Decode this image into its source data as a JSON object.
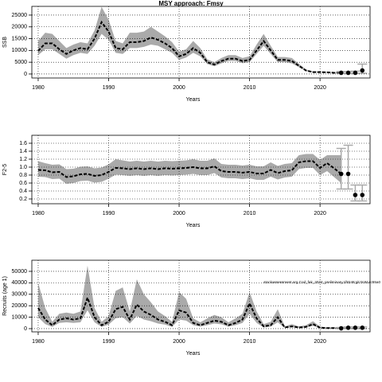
{
  "chart_data": [
    {
      "type": "line",
      "title": "MSY approach: Fmsy",
      "xlabel": "Years",
      "ylabel": "SSB",
      "x": [
        1980,
        1981,
        1982,
        1983,
        1984,
        1985,
        1986,
        1987,
        1988,
        1989,
        1990,
        1991,
        1992,
        1993,
        1994,
        1995,
        1996,
        1997,
        1998,
        1999,
        2000,
        2001,
        2002,
        2003,
        2004,
        2005,
        2006,
        2007,
        2008,
        2009,
        2010,
        2011,
        2012,
        2013,
        2014,
        2015,
        2016,
        2017,
        2018,
        2019,
        2020,
        2021,
        2022,
        2023
      ],
      "values": [
        9800,
        13000,
        13000,
        10500,
        8500,
        10000,
        11000,
        10500,
        15000,
        22000,
        18000,
        11000,
        10500,
        13500,
        13500,
        14000,
        15500,
        14500,
        13000,
        11000,
        7500,
        8500,
        11000,
        9000,
        5000,
        4000,
        5500,
        6500,
        6500,
        5500,
        6000,
        10000,
        14000,
        10000,
        6000,
        6000,
        5500,
        3500,
        1500,
        800,
        800,
        700,
        500,
        500
      ],
      "lower": [
        8000,
        10500,
        10500,
        8500,
        6500,
        8000,
        9000,
        8500,
        12000,
        17000,
        14500,
        9000,
        8500,
        11000,
        11000,
        11500,
        12500,
        12000,
        10500,
        9000,
        6000,
        7000,
        9000,
        7500,
        4200,
        3300,
        4500,
        5500,
        5500,
        4600,
        5000,
        8500,
        12000,
        8500,
        5000,
        5000,
        4500,
        2900,
        1200,
        600,
        600,
        500,
        350,
        300
      ],
      "upper": [
        14000,
        17500,
        17000,
        14000,
        11000,
        12500,
        13500,
        13000,
        18500,
        28500,
        23000,
        14000,
        13000,
        17500,
        17500,
        18000,
        20000,
        18000,
        16000,
        13500,
        9500,
        10500,
        14000,
        11000,
        6200,
        5000,
        6800,
        8000,
        8000,
        6800,
        7500,
        12500,
        17000,
        12000,
        7200,
        7200,
        6800,
        4300,
        1900,
        1100,
        1100,
        1000,
        800,
        900
      ],
      "proj_x": [
        2023,
        2024,
        2025,
        2026
      ],
      "proj_values": [
        500,
        500,
        500,
        1500
      ],
      "proj_lower": [
        200,
        200,
        200,
        300
      ],
      "proj_upper": [
        1000,
        1000,
        1200,
        4200
      ],
      "xlim": [
        1979.1,
        2027.1
      ],
      "ylim": [
        -1700,
        28700
      ],
      "xticks": [
        1980,
        1990,
        2000,
        2010,
        2020
      ],
      "yticks": [
        0,
        5000,
        10000,
        15000,
        20000,
        25000
      ],
      "grid": true
    },
    {
      "type": "line",
      "xlabel": "Years",
      "ylabel": "F2-5",
      "x": [
        1980,
        1981,
        1982,
        1983,
        1984,
        1985,
        1986,
        1987,
        1988,
        1989,
        1990,
        1991,
        1992,
        1993,
        1994,
        1995,
        1996,
        1997,
        1998,
        1999,
        2000,
        2001,
        2002,
        2003,
        2004,
        2005,
        2006,
        2007,
        2008,
        2009,
        2010,
        2011,
        2012,
        2013,
        2014,
        2015,
        2016,
        2017,
        2018,
        2019,
        2020,
        2021,
        2022,
        2023
      ],
      "values": [
        0.93,
        0.92,
        0.87,
        0.88,
        0.75,
        0.77,
        0.82,
        0.83,
        0.78,
        0.8,
        0.88,
        0.98,
        0.97,
        0.95,
        0.97,
        0.95,
        0.97,
        0.95,
        0.97,
        0.96,
        0.97,
        0.98,
        1.0,
        0.97,
        0.97,
        1.02,
        0.9,
        0.88,
        0.88,
        0.86,
        0.88,
        0.84,
        0.84,
        0.93,
        0.85,
        0.9,
        0.92,
        1.12,
        1.15,
        1.15,
        0.98,
        1.1,
        0.97,
        0.83
      ],
      "lower": [
        0.76,
        0.75,
        0.7,
        0.71,
        0.58,
        0.6,
        0.65,
        0.66,
        0.61,
        0.63,
        0.71,
        0.81,
        0.8,
        0.78,
        0.8,
        0.78,
        0.8,
        0.78,
        0.8,
        0.79,
        0.8,
        0.81,
        0.83,
        0.8,
        0.8,
        0.85,
        0.74,
        0.72,
        0.72,
        0.7,
        0.72,
        0.68,
        0.68,
        0.76,
        0.69,
        0.74,
        0.76,
        0.95,
        0.98,
        0.98,
        0.8,
        0.9,
        0.75,
        0.6
      ],
      "upper": [
        1.15,
        1.1,
        1.06,
        1.07,
        0.95,
        0.96,
        1.01,
        1.02,
        0.97,
        0.99,
        1.07,
        1.2,
        1.17,
        1.14,
        1.16,
        1.14,
        1.16,
        1.14,
        1.16,
        1.15,
        1.16,
        1.17,
        1.2,
        1.16,
        1.16,
        1.22,
        1.08,
        1.06,
        1.06,
        1.04,
        1.06,
        1.02,
        1.02,
        1.12,
        1.03,
        1.08,
        1.1,
        1.3,
        1.33,
        1.33,
        1.18,
        1.3,
        1.3,
        1.3
      ],
      "proj_x": [
        2023,
        2024,
        2025,
        2026
      ],
      "proj_values": [
        0.83,
        0.83,
        0.3,
        0.3
      ],
      "proj_lower": [
        0.45,
        0.45,
        0.15,
        0.15
      ],
      "proj_upper": [
        1.47,
        1.55,
        0.55,
        0.55
      ],
      "xlim": [
        1979.1,
        2027.1
      ],
      "ylim": [
        0.08,
        1.8
      ],
      "xticks": [
        1980,
        1990,
        2000,
        2010,
        2020
      ],
      "yticks": [
        0.2,
        0.4,
        0.6,
        0.8,
        {
          "value": 1,
          "label": "1.0"
        },
        1.2,
        1.4,
        1.6
      ],
      "grid": true
    },
    {
      "type": "line",
      "xlabel": "Years",
      "ylabel": "Recruits (age 1)",
      "annotation": "stockassessment.org,Cod_fak_2024_preliminary,1f8248;git:0c91ac55a0",
      "x": [
        1980,
        1981,
        1982,
        1983,
        1984,
        1985,
        1986,
        1987,
        1988,
        1989,
        1990,
        1991,
        1992,
        1993,
        1994,
        1995,
        1996,
        1997,
        1998,
        1999,
        2000,
        2001,
        2002,
        2003,
        2004,
        2005,
        2006,
        2007,
        2008,
        2009,
        2010,
        2011,
        2012,
        2013,
        2014,
        2015,
        2016,
        2017,
        2018,
        2019,
        2020,
        2021,
        2022,
        2023
      ],
      "values": [
        18000,
        8000,
        3000,
        8000,
        9000,
        8000,
        9000,
        27000,
        10000,
        3000,
        6000,
        17000,
        19000,
        8000,
        21000,
        15000,
        12000,
        8000,
        6000,
        3000,
        16000,
        14000,
        5000,
        3000,
        5000,
        7000,
        6000,
        3000,
        5000,
        8000,
        22000,
        9000,
        2000,
        3000,
        10000,
        1000,
        2000,
        1000,
        1500,
        4000,
        800,
        500,
        500,
        300
      ],
      "lower": [
        10000,
        4000,
        1500,
        5000,
        5500,
        5000,
        5500,
        16000,
        5500,
        1500,
        3500,
        9000,
        10000,
        4500,
        11000,
        8000,
        6500,
        4500,
        3500,
        1500,
        8000,
        7000,
        3000,
        1800,
        3000,
        4500,
        3800,
        1800,
        3000,
        5000,
        13000,
        5000,
        1000,
        1800,
        5500,
        500,
        1200,
        600,
        900,
        2500,
        400,
        200,
        200,
        100
      ],
      "upper": [
        40000,
        18000,
        6000,
        13000,
        14000,
        13000,
        15000,
        55000,
        18000,
        6000,
        11000,
        33000,
        36000,
        15000,
        43000,
        30000,
        23000,
        15000,
        11000,
        6000,
        32000,
        26000,
        9000,
        5500,
        9000,
        12000,
        10000,
        5500,
        9000,
        13000,
        32000,
        15000,
        4000,
        6000,
        17000,
        2000,
        4000,
        2000,
        3000,
        6500,
        1800,
        1200,
        1200,
        1000
      ],
      "proj_x": [
        2023,
        2024,
        2025,
        2026
      ],
      "proj_values": [
        300,
        800,
        800,
        800
      ],
      "proj_lower": [
        100,
        100,
        100,
        100
      ],
      "proj_upper": [
        1000,
        1500,
        1500,
        1500
      ],
      "xlim": [
        1979.1,
        2027.1
      ],
      "ylim": [
        -2800,
        59700
      ],
      "xticks": [
        1980,
        1990,
        2000,
        2010,
        2020
      ],
      "yticks": [
        0,
        10000,
        20000,
        30000,
        40000,
        50000
      ],
      "grid": true
    }
  ]
}
